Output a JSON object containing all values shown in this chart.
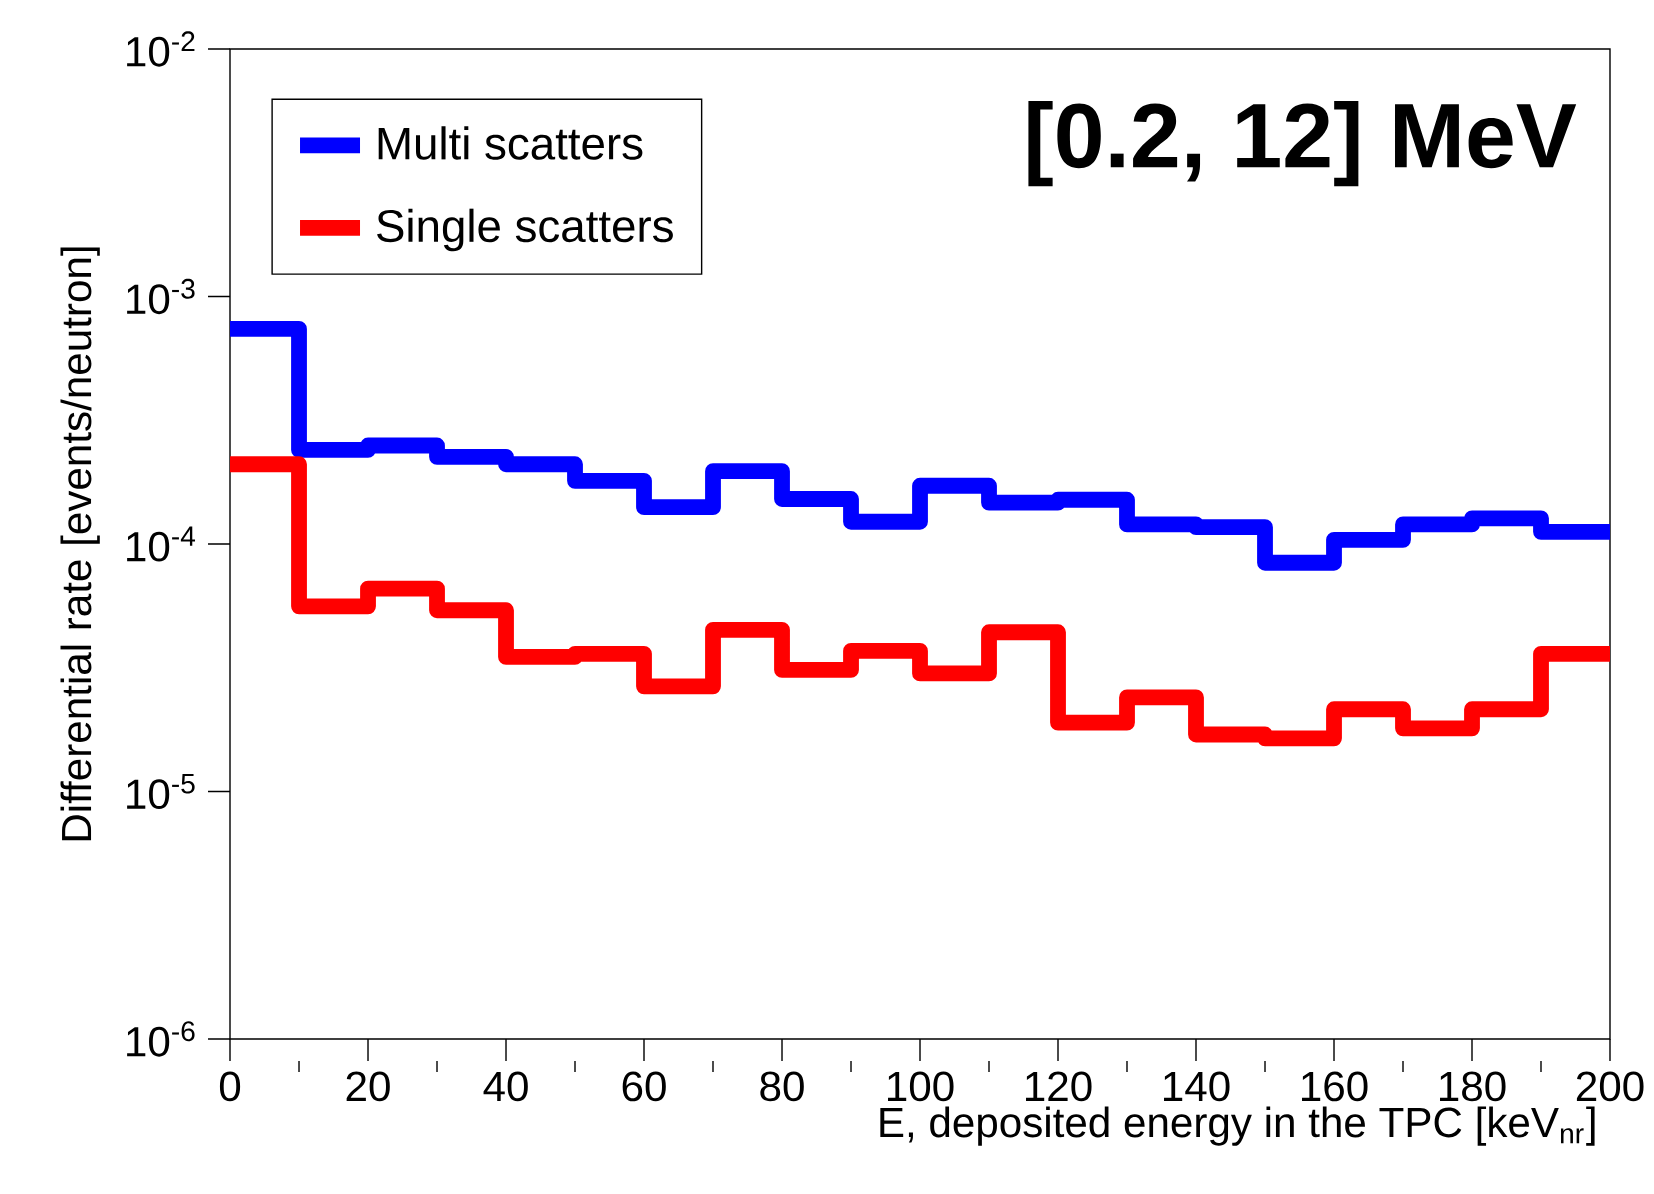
{
  "chart_data": {
    "type": "histogram",
    "xlabel": "E, deposited energy in the TPC [keV$_{nr}$]",
    "ylabel": "Differential rate [events/neutron]",
    "annotations": [
      "**[0.2, 12] MeV**"
    ],
    "bins": [
      0,
      10,
      20,
      30,
      40,
      50,
      60,
      70,
      80,
      90,
      100,
      110,
      120,
      130,
      140,
      150,
      160,
      170,
      180,
      190,
      200
    ],
    "series": [
      {
        "name": "Multi scatters",
        "color": "#0000ff",
        "values": [
          0.00074,
          0.00024,
          0.00025,
          0.000225,
          0.00021,
          0.00018,
          0.000141,
          0.000197,
          0.000152,
          0.000123,
          0.000172,
          0.000147,
          0.000151,
          0.00012,
          0.000117,
          8.4e-05,
          0.000104,
          0.00012,
          0.000127,
          0.000112
        ]
      },
      {
        "name": "Single scatters",
        "color": "#ff0000",
        "values": [
          0.00021,
          5.6e-05,
          6.6e-05,
          5.4e-05,
          3.5e-05,
          3.6e-05,
          2.66e-05,
          4.5e-05,
          3.1e-05,
          3.7e-05,
          3e-05,
          4.4e-05,
          1.9e-05,
          2.4e-05,
          1.7e-05,
          1.64e-05,
          2.15e-05,
          1.8e-05,
          2.15e-05,
          3.6e-05
        ]
      }
    ],
    "xlim": [
      0,
      200
    ],
    "xticks": [
      0,
      20,
      40,
      60,
      80,
      100,
      120,
      140,
      160,
      180,
      200
    ],
    "ylim": [
      1e-06,
      0.01
    ],
    "yticks": [
      {
        "value": 1e-06,
        "label": "10$^{-6}$"
      },
      {
        "value": 1e-05,
        "label": "10$^{-5}$"
      },
      {
        "value": 0.0001,
        "label": "10$^{-4}$"
      },
      {
        "value": 0.001,
        "label": "10$^{-3}$"
      },
      {
        "value": 0.01,
        "label": "10$^{-2}$"
      }
    ],
    "log": "y",
    "legend": "top left",
    "grid": false
  }
}
